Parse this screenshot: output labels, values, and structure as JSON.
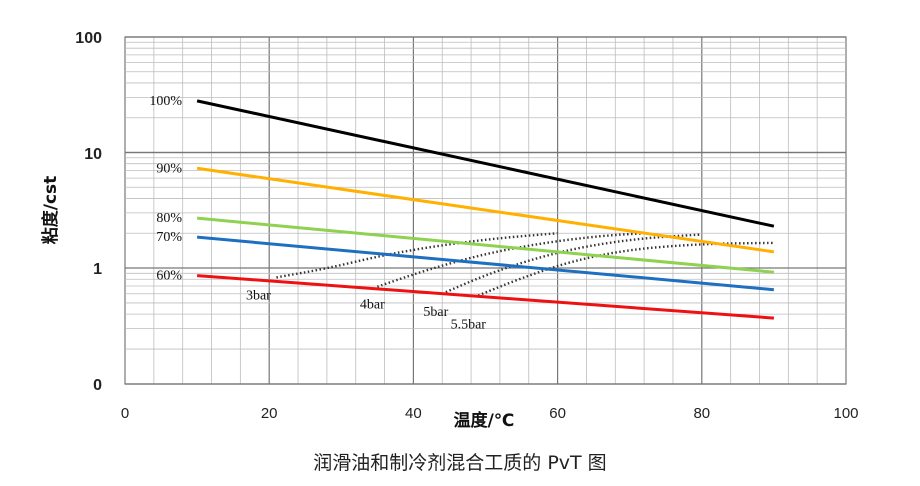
{
  "caption": "润滑油和制冷剂混合工质的 PvT 图",
  "chart_data": {
    "type": "line",
    "title": "",
    "xlabel": "温度/℃",
    "ylabel": "粘度/cst",
    "xlim": [
      0,
      100
    ],
    "x_ticks": [
      "0",
      "20",
      "40",
      "60",
      "80",
      "100"
    ],
    "y_scale": "log",
    "y_ticks": [
      "0",
      "1",
      "10",
      "100"
    ],
    "grid": true,
    "series": [
      {
        "name": "100%",
        "color": "#000000",
        "x": [
          10,
          90
        ],
        "y": [
          28,
          2.3
        ],
        "style": "solid"
      },
      {
        "name": "90%",
        "color": "#ffb000",
        "x": [
          10,
          90
        ],
        "y": [
          7.3,
          1.38
        ],
        "style": "solid"
      },
      {
        "name": "80%",
        "color": "#8fd150",
        "x": [
          10,
          90
        ],
        "y": [
          2.7,
          0.92
        ],
        "style": "solid"
      },
      {
        "name": "70%",
        "color": "#1f6fc0",
        "x": [
          10,
          90
        ],
        "y": [
          1.85,
          0.65
        ],
        "style": "solid"
      },
      {
        "name": "60%",
        "color": "#ee1111",
        "x": [
          10,
          90
        ],
        "y": [
          0.86,
          0.37
        ],
        "style": "solid"
      }
    ],
    "pressure_curves": [
      {
        "name": "3bar",
        "x": [
          21,
          28,
          36,
          44,
          52,
          60
        ],
        "y": [
          0.83,
          0.99,
          1.3,
          1.58,
          1.82,
          2.0
        ]
      },
      {
        "name": "4bar",
        "x": [
          35,
          42,
          50,
          58,
          66,
          72
        ],
        "y": [
          0.69,
          0.97,
          1.33,
          1.65,
          1.9,
          2.0
        ]
      },
      {
        "name": "5bar",
        "x": [
          44.5,
          50,
          57,
          64,
          72,
          80
        ],
        "y": [
          0.62,
          0.87,
          1.22,
          1.55,
          1.82,
          1.95
        ]
      },
      {
        "name": "5.5bar",
        "x": [
          49,
          55,
          62,
          70,
          80,
          90
        ],
        "y": [
          0.58,
          0.82,
          1.15,
          1.45,
          1.62,
          1.65
        ]
      }
    ]
  }
}
